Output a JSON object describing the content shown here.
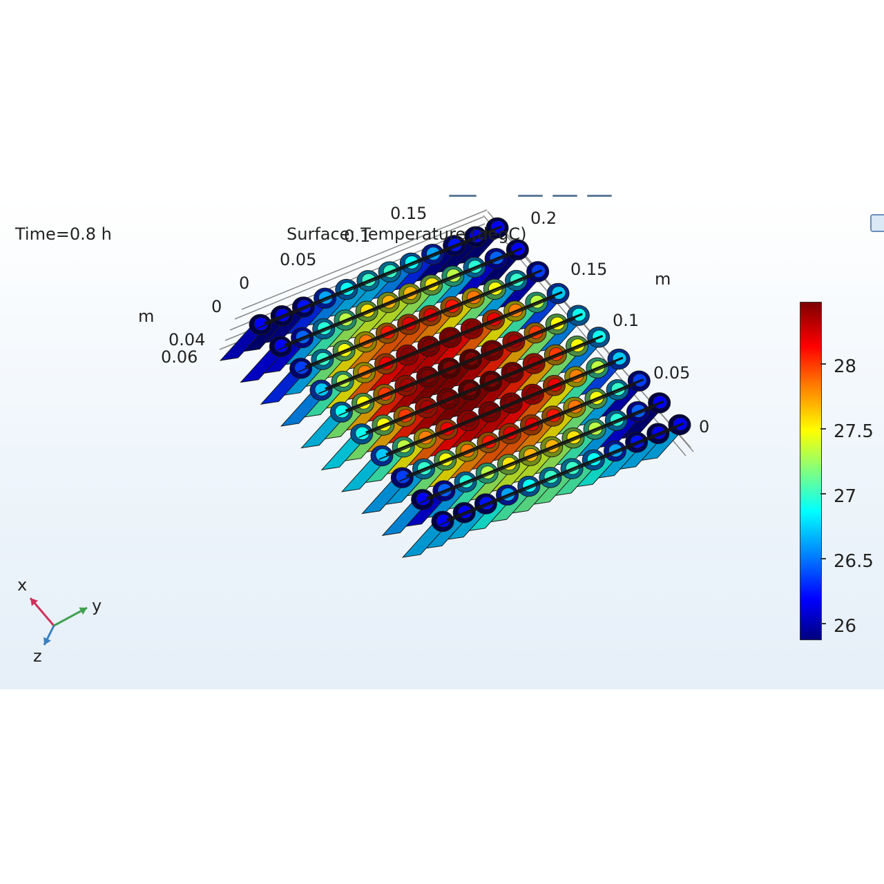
{
  "plot": {
    "time_label": "Time=0.8 h",
    "title_label": "Surface: Temperature (degC)",
    "overlap_label": "0.1",
    "x_axis": {
      "unit": "m",
      "ticks": [
        "0",
        "0.05",
        "0.15",
        "0.2"
      ]
    },
    "y_axis": {
      "unit": "m",
      "ticks": [
        "0.15",
        "0.1",
        "0.05",
        "0"
      ]
    },
    "z_axis": {
      "unit": "m",
      "ticks": [
        "0",
        "0.04",
        "0.06"
      ]
    },
    "triad": {
      "x": "x",
      "y": "y",
      "z": "z"
    },
    "colorbar": {
      "min": 25.9,
      "max": 28.5,
      "ticks": [
        "28",
        "27.5",
        "27",
        "26.5",
        "26"
      ]
    },
    "colors": {
      "axis_x": "#d0305a",
      "axis_y": "#40a050",
      "axis_z": "#3a7fc0"
    }
  }
}
